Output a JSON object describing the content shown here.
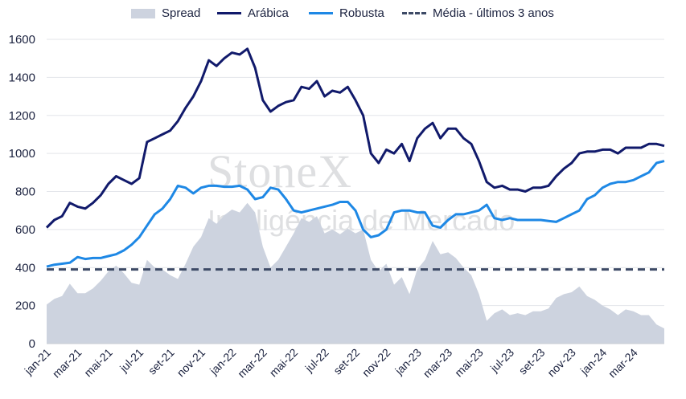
{
  "chart_data": {
    "type": "line",
    "legend": {
      "placement": "top",
      "items": [
        {
          "label": "Spread",
          "kind": "area",
          "color": "#cdd3df"
        },
        {
          "label": "Arábica",
          "kind": "line",
          "color": "#111a6b"
        },
        {
          "label": "Robusta",
          "kind": "line",
          "color": "#1e88e5"
        },
        {
          "label": "Média - últimos 3 anos",
          "kind": "dashed",
          "color": "#3d4a66"
        }
      ]
    },
    "watermark": {
      "title": "StoneX",
      "subtitle": "Inteligência de Mercado"
    },
    "x_tick_labels": [
      "jan-21",
      "mar-21",
      "mai-21",
      "jul-21",
      "set-21",
      "nov-21",
      "jan-22",
      "mar-22",
      "mai-22",
      "jul-22",
      "set-22",
      "nov-22",
      "jan-23",
      "mar-23",
      "mai-23",
      "jul-23",
      "set-23",
      "nov-23",
      "jan-24",
      "mar-24"
    ],
    "ylim": [
      0,
      1600
    ],
    "y_ticks": [
      0,
      200,
      400,
      600,
      800,
      1000,
      1200,
      1400,
      1600
    ],
    "grid": "horizontal",
    "x_unit": "months since jan-21",
    "xlim": [
      0,
      40
    ],
    "series": [
      {
        "name": "Arábica",
        "color": "#111a6b",
        "x": [
          0,
          0.5,
          1,
          1.5,
          2,
          2.5,
          3,
          3.5,
          4,
          4.5,
          5,
          5.5,
          6,
          6.5,
          7,
          7.5,
          8,
          8.5,
          9,
          9.5,
          10,
          10.5,
          11,
          11.5,
          12,
          12.5,
          13,
          13.5,
          14,
          14.5,
          15,
          15.5,
          16,
          16.5,
          17,
          17.5,
          18,
          18.5,
          19,
          19.5,
          20,
          20.5,
          21,
          21.5,
          22,
          22.5,
          23,
          23.5,
          24,
          24.5,
          25,
          25.5,
          26,
          26.5,
          27,
          27.5,
          28,
          28.5,
          29,
          29.5,
          30,
          30.5,
          31,
          31.5,
          32,
          32.5,
          33,
          33.5,
          34,
          34.5,
          35,
          35.5,
          36,
          36.5,
          37,
          37.5,
          38,
          38.5,
          39,
          39.5,
          40
        ],
        "values": [
          610,
          650,
          670,
          740,
          720,
          710,
          740,
          780,
          840,
          880,
          860,
          840,
          870,
          1060,
          1080,
          1100,
          1120,
          1170,
          1240,
          1300,
          1380,
          1490,
          1460,
          1500,
          1530,
          1520,
          1550,
          1450,
          1280,
          1220,
          1250,
          1270,
          1280,
          1350,
          1340,
          1380,
          1300,
          1330,
          1320,
          1350,
          1280,
          1200,
          1000,
          950,
          1020,
          1000,
          1050,
          960,
          1080,
          1130,
          1160,
          1080,
          1130,
          1130,
          1080,
          1050,
          960,
          850,
          820,
          830,
          810,
          810,
          800,
          820,
          820,
          830,
          880,
          920,
          950,
          1000,
          1010,
          1010,
          1020,
          1020,
          1000,
          1030,
          1030,
          1030,
          1050,
          1050,
          1040
        ]
      },
      {
        "name": "Robusta",
        "color": "#1e88e5",
        "x": [
          0,
          0.5,
          1,
          1.5,
          2,
          2.5,
          3,
          3.5,
          4,
          4.5,
          5,
          5.5,
          6,
          6.5,
          7,
          7.5,
          8,
          8.5,
          9,
          9.5,
          10,
          10.5,
          11,
          11.5,
          12,
          12.5,
          13,
          13.5,
          14,
          14.5,
          15,
          15.5,
          16,
          16.5,
          17,
          17.5,
          18,
          18.5,
          19,
          19.5,
          20,
          20.5,
          21,
          21.5,
          22,
          22.5,
          23,
          23.5,
          24,
          24.5,
          25,
          25.5,
          26,
          26.5,
          27,
          27.5,
          28,
          28.5,
          29,
          29.5,
          30,
          30.5,
          31,
          31.5,
          32,
          32.5,
          33,
          33.5,
          34,
          34.5,
          35,
          35.5,
          36,
          36.5,
          37,
          37.5,
          38,
          38.5,
          39,
          39.5,
          40
        ],
        "values": [
          405,
          415,
          420,
          425,
          455,
          445,
          450,
          450,
          460,
          470,
          490,
          520,
          560,
          620,
          680,
          710,
          760,
          830,
          820,
          790,
          820,
          830,
          830,
          825,
          825,
          830,
          810,
          760,
          770,
          820,
          810,
          760,
          700,
          690,
          700,
          710,
          720,
          730,
          745,
          745,
          700,
          600,
          560,
          570,
          600,
          690,
          700,
          700,
          690,
          690,
          620,
          610,
          650,
          680,
          680,
          690,
          700,
          730,
          660,
          650,
          660,
          650,
          650,
          650,
          650,
          645,
          640,
          660,
          680,
          700,
          760,
          780,
          820,
          840,
          850,
          850,
          860,
          880,
          900,
          950,
          960
        ]
      },
      {
        "name": "Média - últimos 3 anos",
        "color": "#3d4a66",
        "style": "dashed",
        "x": [
          0,
          40
        ],
        "values": [
          390,
          390
        ]
      },
      {
        "name": "Spread",
        "color": "#cdd3df",
        "style": "area",
        "x": [
          0,
          0.5,
          1,
          1.5,
          2,
          2.5,
          3,
          3.5,
          4,
          4.5,
          5,
          5.5,
          6,
          6.5,
          7,
          7.5,
          8,
          8.5,
          9,
          9.5,
          10,
          10.5,
          11,
          11.5,
          12,
          12.5,
          13,
          13.5,
          14,
          14.5,
          15,
          15.5,
          16,
          16.5,
          17,
          17.5,
          18,
          18.5,
          19,
          19.5,
          20,
          20.5,
          21,
          21.5,
          22,
          22.5,
          23,
          23.5,
          24,
          24.5,
          25,
          25.5,
          26,
          26.5,
          27,
          27.5,
          28,
          28.5,
          29,
          29.5,
          30,
          30.5,
          31,
          31.5,
          32,
          32.5,
          33,
          33.5,
          34,
          34.5,
          35,
          35.5,
          36,
          36.5,
          37,
          37.5,
          38,
          38.5,
          39,
          39.5,
          40
        ],
        "values": [
          205,
          235,
          250,
          315,
          265,
          265,
          290,
          330,
          380,
          410,
          370,
          320,
          310,
          440,
          400,
          390,
          360,
          340,
          420,
          510,
          560,
          660,
          630,
          675,
          705,
          690,
          740,
          690,
          510,
          400,
          440,
          510,
          580,
          660,
          640,
          670,
          580,
          600,
          575,
          605,
          580,
          600,
          440,
          380,
          420,
          310,
          350,
          260,
          390,
          440,
          540,
          470,
          480,
          450,
          400,
          360,
          260,
          120,
          160,
          180,
          150,
          160,
          150,
          170,
          170,
          185,
          240,
          260,
          270,
          300,
          250,
          230,
          200,
          180,
          150,
          180,
          170,
          150,
          150,
          100,
          80
        ]
      }
    ]
  }
}
